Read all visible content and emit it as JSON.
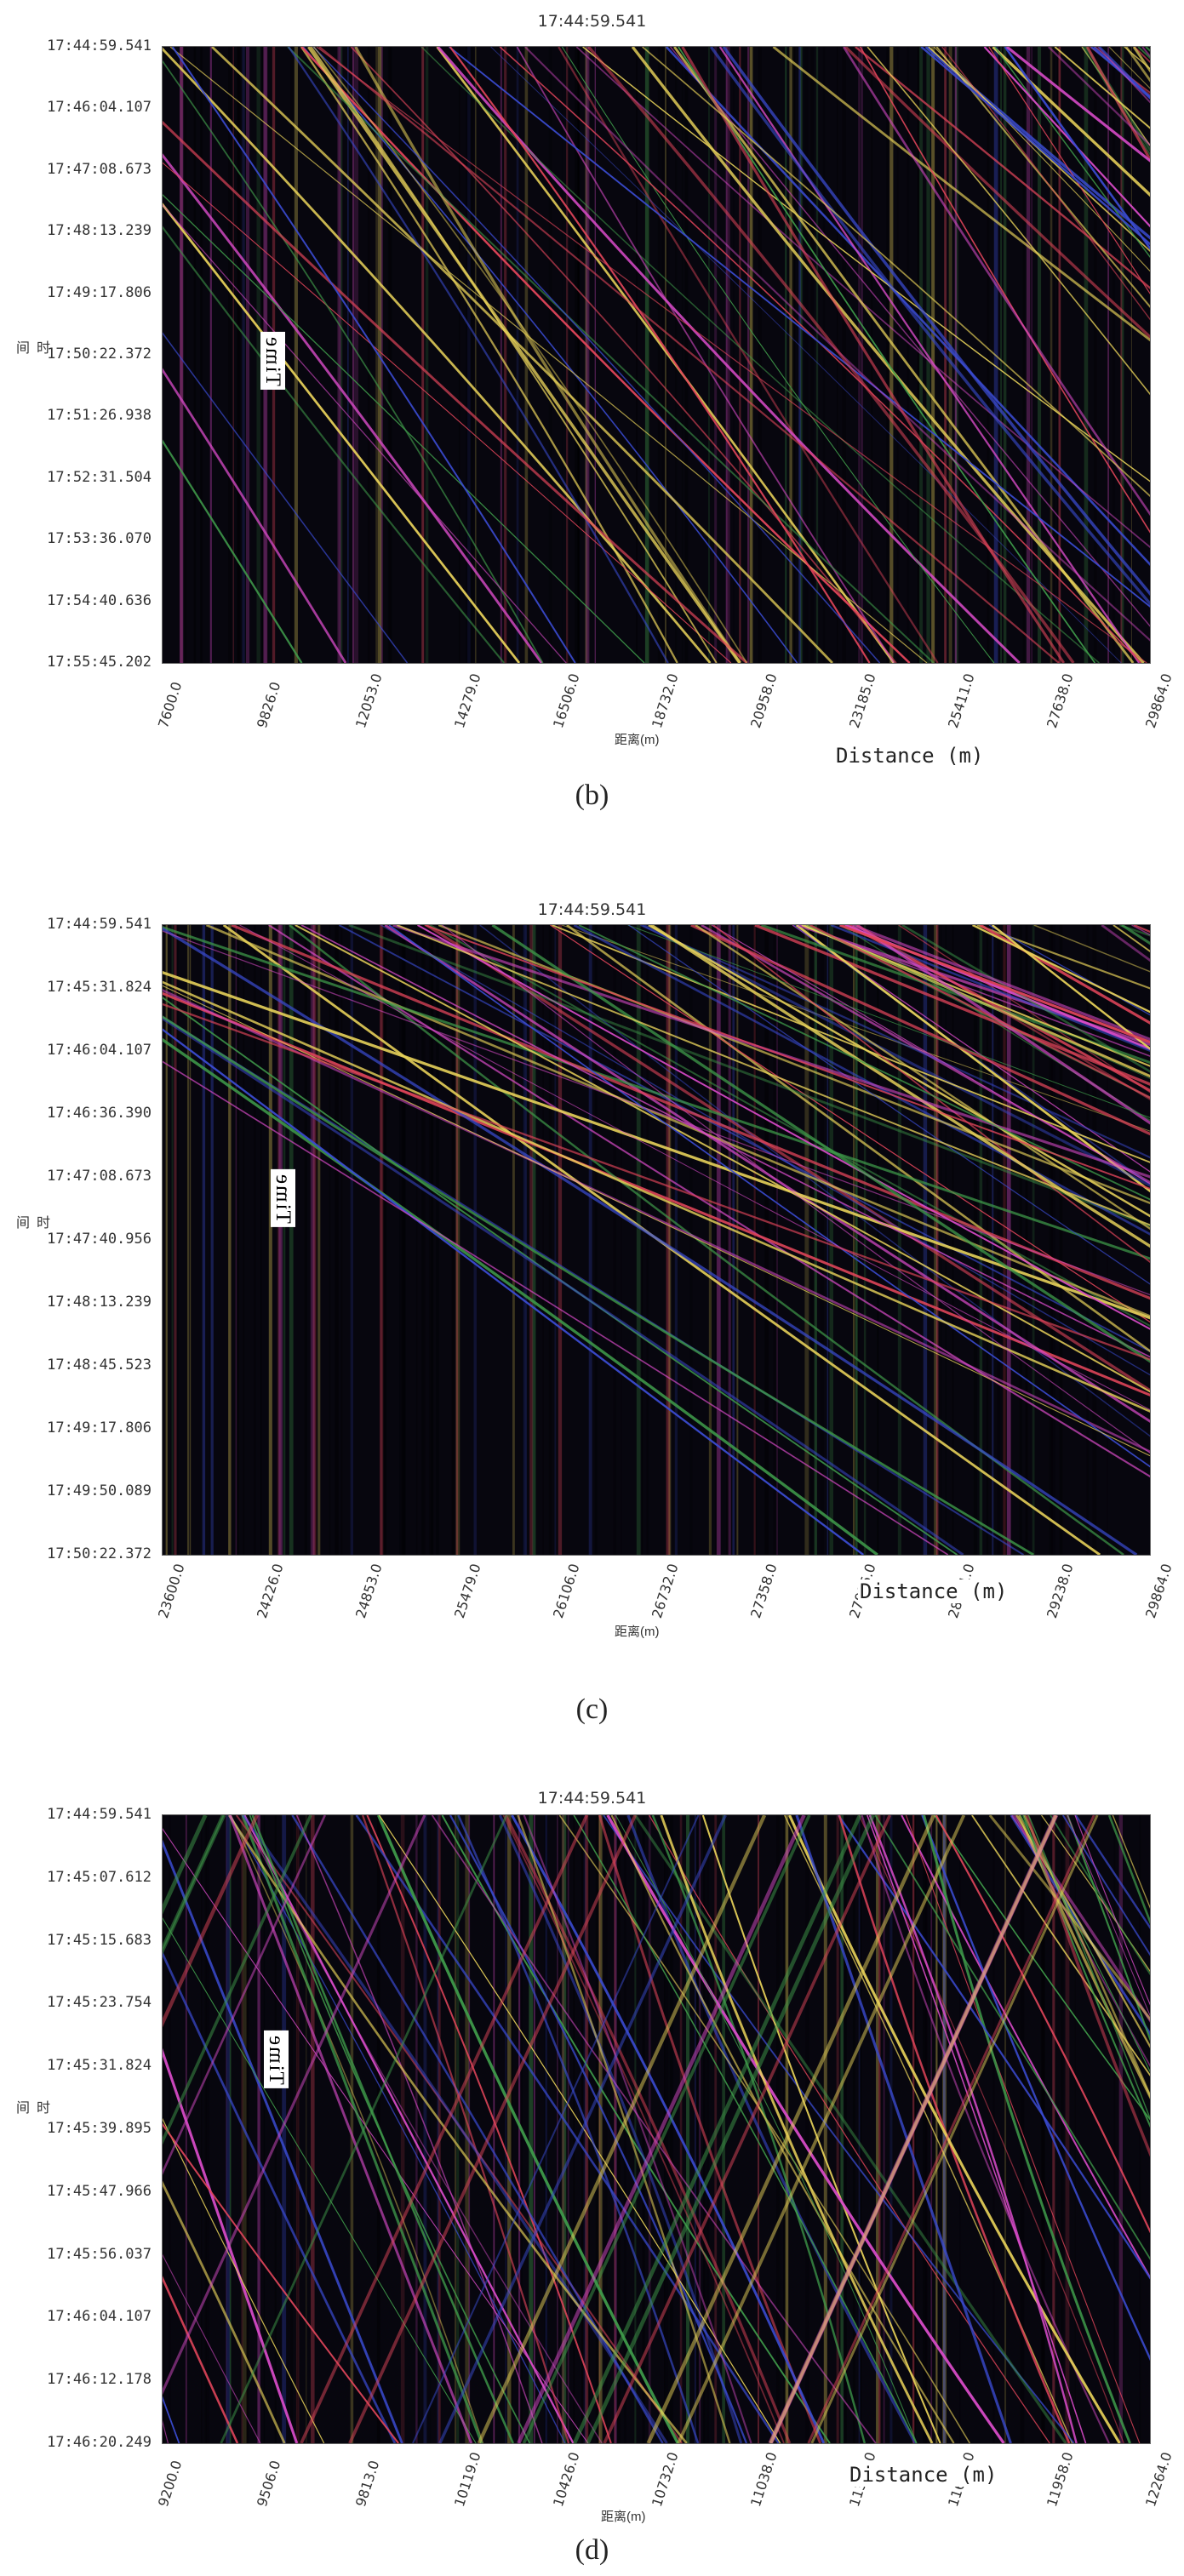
{
  "panels": [
    {
      "id": "b",
      "title": "17:44:59.541",
      "caption": "(b)",
      "ylabel_cn": "时间",
      "xlabel_cn": "距离(m)",
      "time_label": "Time",
      "distance_label": "Distance (m)",
      "yticks": [
        "17:44:59.541",
        "17:46:04.107",
        "17:47:08.673",
        "17:48:13.239",
        "17:49:17.806",
        "17:50:22.372",
        "17:51:26.938",
        "17:52:31.504",
        "17:53:36.070",
        "17:54:40.636",
        "17:55:45.202"
      ],
      "xticks": [
        "7600.0",
        "9826.0",
        "12053.0",
        "14279.0",
        "16506.0",
        "18732.0",
        "20958.0",
        "23185.0",
        "25411.0",
        "27638.0",
        "29864.0"
      ]
    },
    {
      "id": "c",
      "title": "17:44:59.541",
      "caption": "(c)",
      "ylabel_cn": "时间",
      "xlabel_cn": "距离(m)",
      "time_label": "Time",
      "distance_label": "Distance (m)",
      "yticks": [
        "17:44:59.541",
        "17:45:31.824",
        "17:46:04.107",
        "17:46:36.390",
        "17:47:08.673",
        "17:47:40.956",
        "17:48:13.239",
        "17:48:45.523",
        "17:49:17.806",
        "17:49:50.089",
        "17:50:22.372"
      ],
      "xticks": [
        "23600.0",
        "24226.0",
        "24853.0",
        "25479.0",
        "26106.0",
        "26732.0",
        "27358.0",
        "27985.0",
        "28611.0",
        "29238.0",
        "29864.0"
      ]
    },
    {
      "id": "d",
      "title": "17:44:59.541",
      "caption": "(d)",
      "ylabel_cn": "时间",
      "xlabel_cn": "距离(m)",
      "time_label": "Time",
      "distance_label": "Distance (m)",
      "yticks": [
        "17:44:59.541",
        "17:45:07.612",
        "17:45:15.683",
        "17:45:23.754",
        "17:45:31.824",
        "17:45:39.895",
        "17:45:47.966",
        "17:45:56.037",
        "17:46:04.107",
        "17:46:12.178",
        "17:46:20.249"
      ],
      "xticks": [
        "9200.0",
        "9506.0",
        "9813.0",
        "10119.0",
        "10426.0",
        "10732.0",
        "11038.0",
        "11345.0",
        "11651.0",
        "11958.0",
        "12264.0"
      ]
    }
  ],
  "colors": {
    "background": "#07060e",
    "trace_red": "#e0455a",
    "trace_yellow": "#e8d25a",
    "trace_blue": "#3a4bd0",
    "trace_green": "#3f9a4a"
  }
}
